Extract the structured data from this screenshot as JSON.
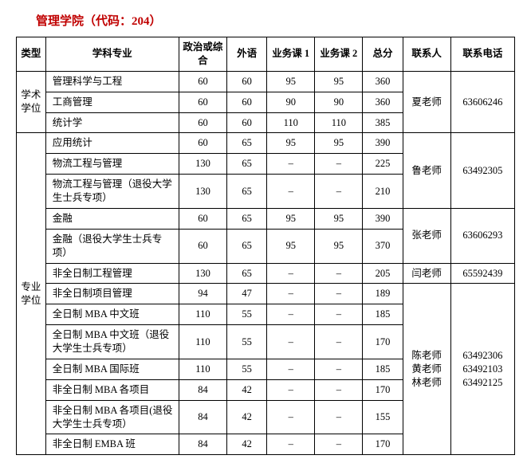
{
  "title": "管理学院（代码：204）",
  "headers": {
    "type": "类型",
    "major": "学科专业",
    "politics": "政治或综合",
    "language": "外语",
    "subject1": "业务课 1",
    "subject2": "业务课 2",
    "total": "总分",
    "contact": "联系人",
    "phone": "联系电话"
  },
  "group1": {
    "type": "学术学位",
    "contact": "夏老师",
    "phone": "63606246",
    "rows": [
      {
        "major": "管理科学与工程",
        "pol": "60",
        "lang": "60",
        "s1": "95",
        "s2": "95",
        "total": "360"
      },
      {
        "major": "工商管理",
        "pol": "60",
        "lang": "60",
        "s1": "90",
        "s2": "90",
        "total": "360"
      },
      {
        "major": "统计学",
        "pol": "60",
        "lang": "60",
        "s1": "110",
        "s2": "110",
        "total": "385"
      }
    ]
  },
  "group2": {
    "type": "专业学位",
    "blockA": {
      "contact": "鲁老师",
      "phone": "63492305",
      "rows": [
        {
          "major": "应用统计",
          "pol": "60",
          "lang": "65",
          "s1": "95",
          "s2": "95",
          "total": "390"
        },
        {
          "major": "物流工程与管理",
          "pol": "130",
          "lang": "65",
          "s1": "–",
          "s2": "–",
          "total": "225"
        },
        {
          "major": "物流工程与管理（退役大学生士兵专项）",
          "pol": "130",
          "lang": "65",
          "s1": "–",
          "s2": "–",
          "total": "210"
        }
      ]
    },
    "blockB": {
      "contact": "张老师",
      "phone": "63606293",
      "rows": [
        {
          "major": "金融",
          "pol": "60",
          "lang": "65",
          "s1": "95",
          "s2": "95",
          "total": "390"
        },
        {
          "major": "金融（退役大学生士兵专项）",
          "pol": "60",
          "lang": "65",
          "s1": "95",
          "s2": "95",
          "total": "370"
        }
      ]
    },
    "blockC": {
      "contact": "闫老师",
      "phone": "65592439",
      "rows": [
        {
          "major": "非全日制工程管理",
          "pol": "130",
          "lang": "65",
          "s1": "–",
          "s2": "–",
          "total": "205"
        }
      ]
    },
    "blockD": {
      "contact": "陈老师\n黄老师\n林老师",
      "phone": "63492306\n63492103\n63492125",
      "rows": [
        {
          "major": "非全日制项目管理",
          "pol": "94",
          "lang": "47",
          "s1": "–",
          "s2": "–",
          "total": "189"
        },
        {
          "major": "全日制 MBA 中文班",
          "pol": "110",
          "lang": "55",
          "s1": "–",
          "s2": "–",
          "total": "185"
        },
        {
          "major": "全日制 MBA 中文班（退役大学生士兵专项）",
          "pol": "110",
          "lang": "55",
          "s1": "–",
          "s2": "–",
          "total": "170"
        },
        {
          "major": "全日制 MBA 国际班",
          "pol": "110",
          "lang": "55",
          "s1": "–",
          "s2": "–",
          "total": "185"
        },
        {
          "major": "非全日制 MBA 各项目",
          "pol": "84",
          "lang": "42",
          "s1": "–",
          "s2": "–",
          "total": "170"
        },
        {
          "major": "非全日制 MBA 各项目(退役大学生士兵专项）",
          "pol": "84",
          "lang": "42",
          "s1": "–",
          "s2": "–",
          "total": "155"
        },
        {
          "major": "非全日制 EMBA 班",
          "pol": "84",
          "lang": "42",
          "s1": "–",
          "s2": "–",
          "total": "170"
        }
      ]
    }
  }
}
